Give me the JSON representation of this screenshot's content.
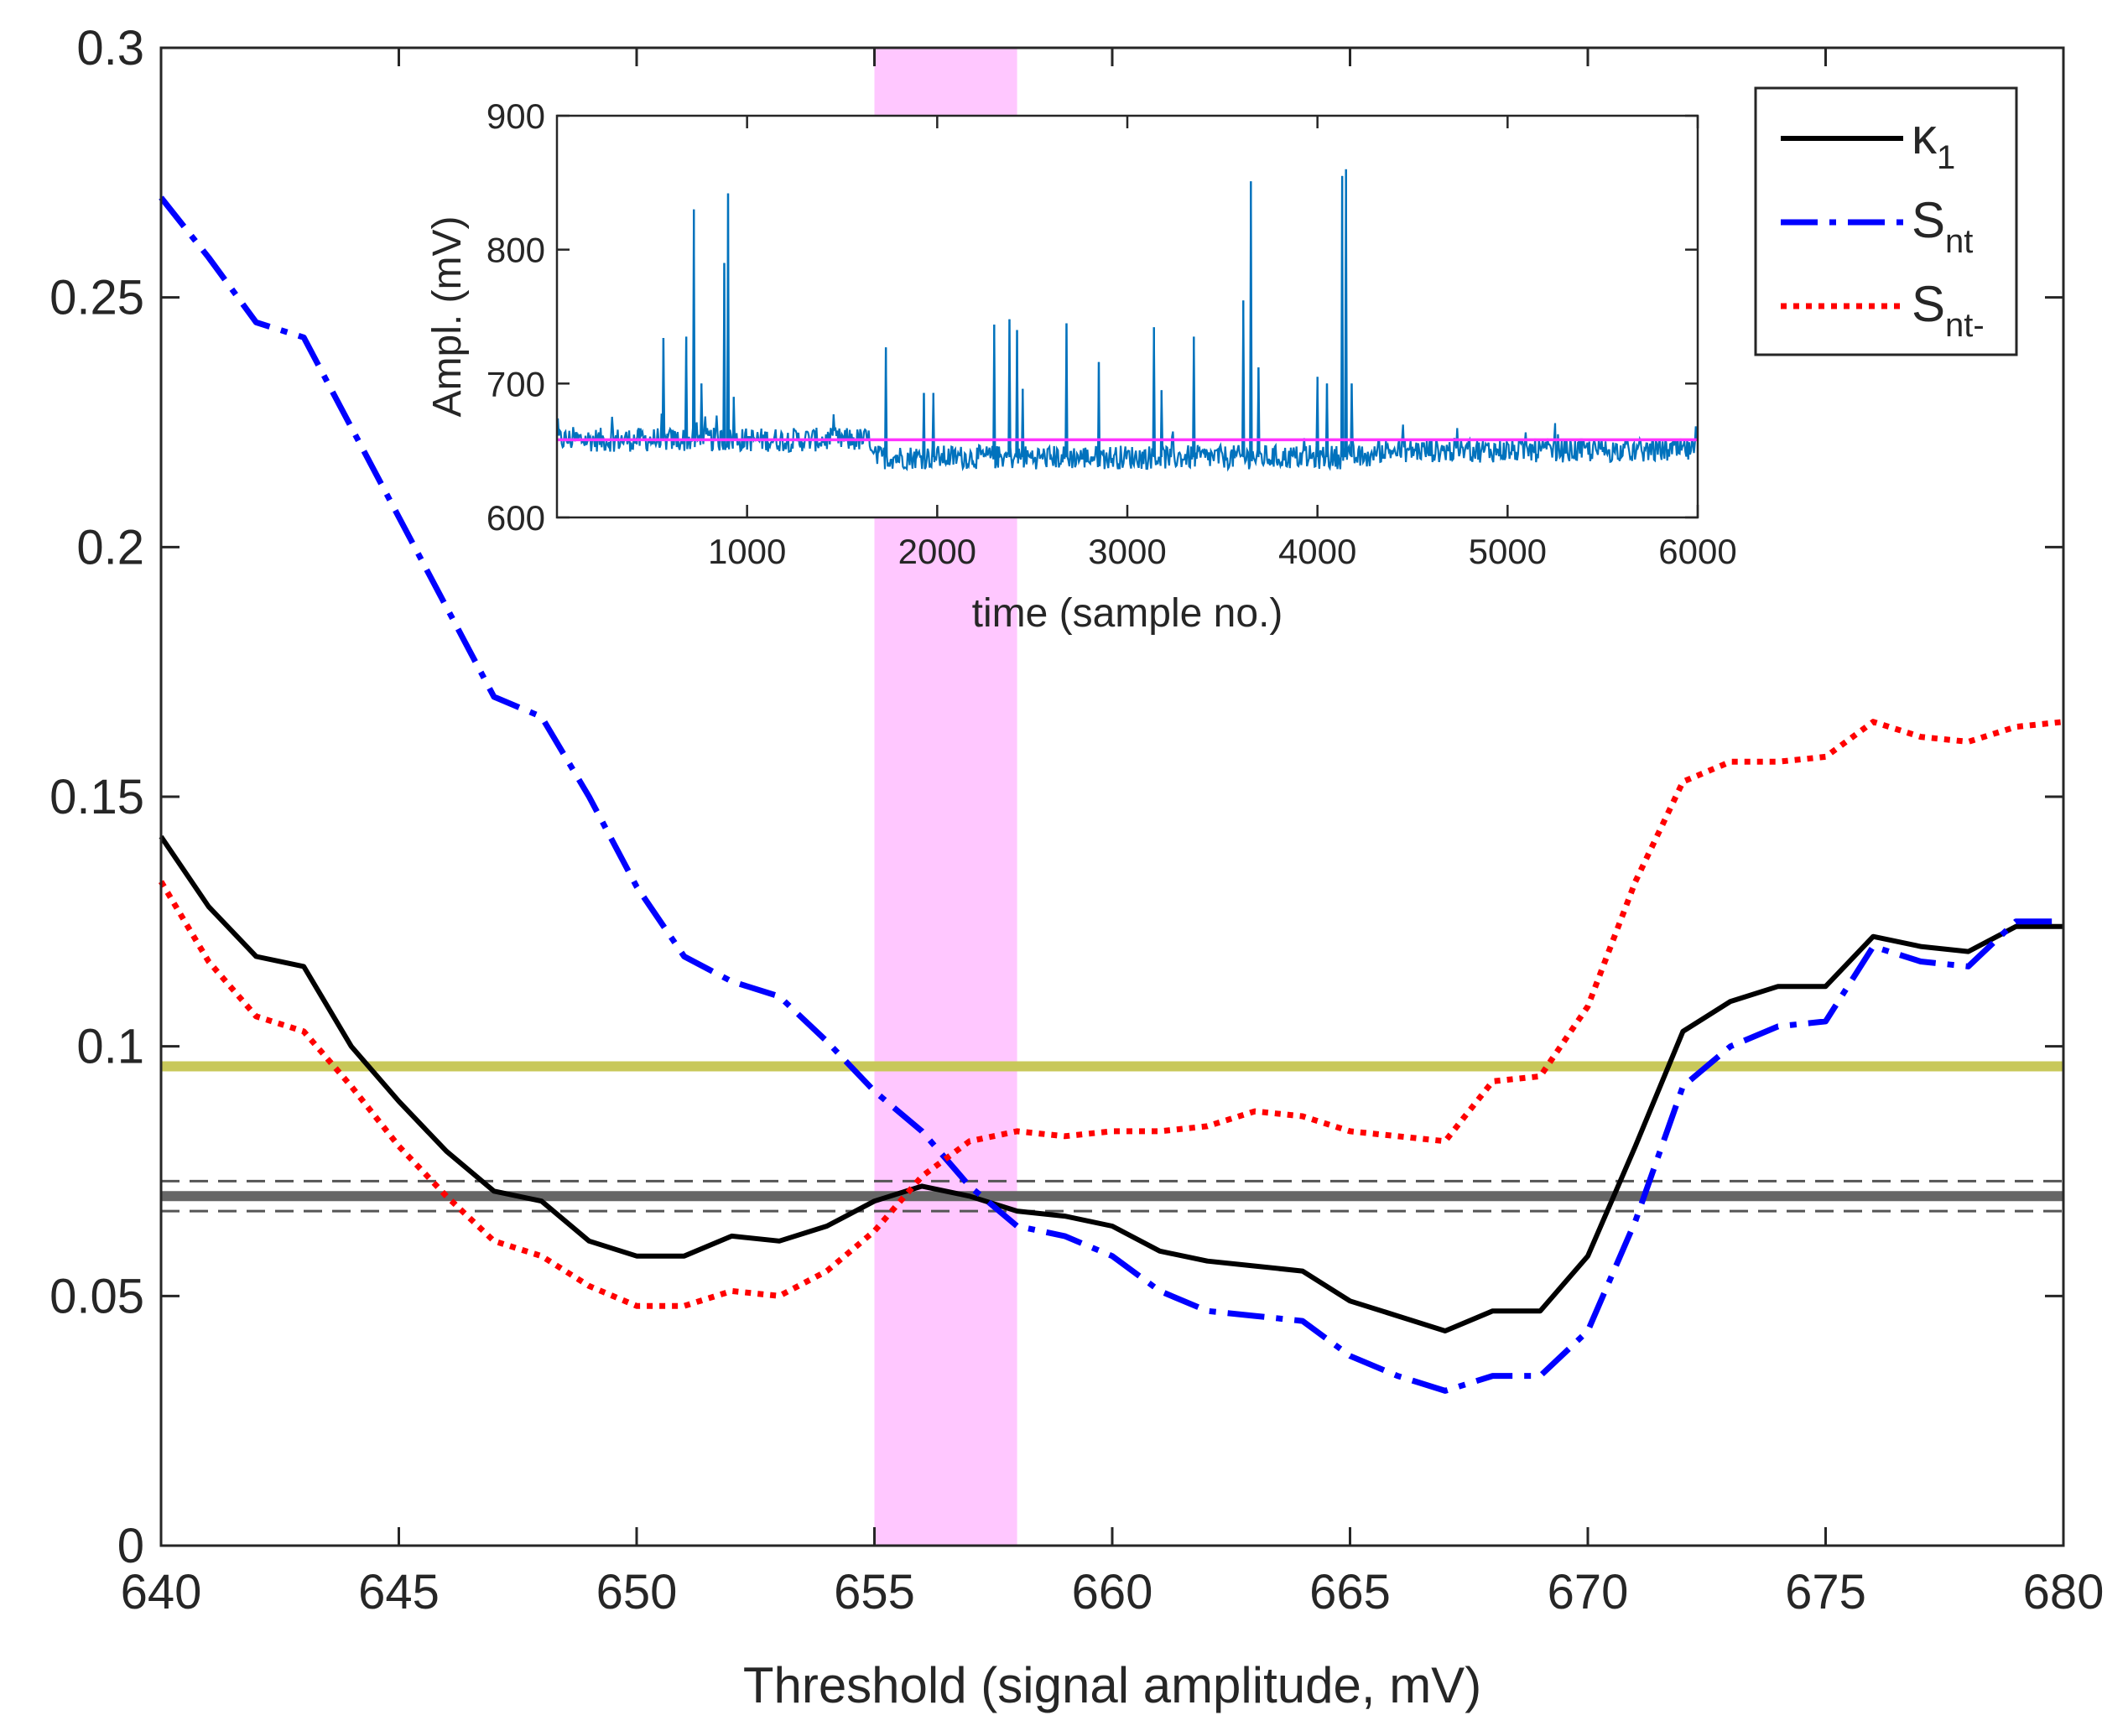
{
  "chart_data": [
    {
      "type": "line",
      "xlabel": "Threshold (signal amplitude, mV)",
      "ylabel": "",
      "xlim": [
        640,
        680
      ],
      "ylim": [
        0,
        0.3
      ],
      "xticks": [
        640,
        645,
        650,
        655,
        660,
        665,
        670,
        675,
        680
      ],
      "yticks": [
        0,
        0.05,
        0.1,
        0.15,
        0.2,
        0.25,
        0.3
      ],
      "ytick_labels": [
        "0",
        "0.05",
        "0.1",
        "0.15",
        "0.2",
        "0.25",
        "0.3"
      ],
      "grid": false,
      "legend_position": "top-right",
      "x": [
        640,
        641,
        642,
        643,
        644,
        645,
        646,
        647,
        648,
        649,
        650,
        651,
        652,
        653,
        654,
        655,
        656,
        657,
        658,
        659,
        660,
        661,
        662,
        663,
        664,
        665,
        666,
        667,
        668,
        669,
        670,
        671,
        672,
        673,
        674,
        675,
        676,
        677,
        678,
        679,
        680
      ],
      "series": [
        {
          "name": "κ",
          "name_subscript": "1",
          "style": "solid",
          "color": "#000000",
          "values": [
            0.142,
            0.128,
            0.118,
            0.116,
            0.1,
            0.089,
            0.079,
            0.071,
            0.069,
            0.061,
            0.058,
            0.058,
            0.062,
            0.061,
            0.064,
            0.069,
            0.072,
            0.07,
            0.067,
            0.066,
            0.064,
            0.059,
            0.057,
            0.056,
            0.055,
            0.049,
            0.046,
            0.043,
            0.047,
            0.047,
            0.058,
            0.08,
            0.103,
            0.109,
            0.112,
            0.112,
            0.122,
            0.12,
            0.119,
            0.124,
            0.124
          ]
        },
        {
          "name": "S",
          "name_subscript": "nt",
          "style": "dashdot",
          "color": "#0000ff",
          "values": [
            0.27,
            0.258,
            0.245,
            0.242,
            0.224,
            0.206,
            0.188,
            0.17,
            0.166,
            0.15,
            0.132,
            0.118,
            0.113,
            0.11,
            0.101,
            0.091,
            0.083,
            0.072,
            0.064,
            0.062,
            0.058,
            0.051,
            0.047,
            0.046,
            0.045,
            0.038,
            0.034,
            0.031,
            0.034,
            0.034,
            0.043,
            0.065,
            0.092,
            0.1,
            0.104,
            0.105,
            0.12,
            0.117,
            0.116,
            0.125,
            0.125
          ]
        },
        {
          "name": "S",
          "name_subscript": "nt-",
          "style": "dotted",
          "color": "#ff0000",
          "values": [
            0.133,
            0.117,
            0.106,
            0.103,
            0.092,
            0.08,
            0.07,
            0.061,
            0.058,
            0.052,
            0.048,
            0.048,
            0.051,
            0.05,
            0.055,
            0.063,
            0.074,
            0.081,
            0.083,
            0.082,
            0.083,
            0.083,
            0.084,
            0.087,
            0.086,
            0.083,
            0.082,
            0.081,
            0.093,
            0.094,
            0.108,
            0.133,
            0.153,
            0.157,
            0.157,
            0.158,
            0.165,
            0.162,
            0.161,
            0.164,
            0.165
          ]
        }
      ],
      "horizontal_lines": [
        {
          "y": 0.096,
          "color": "#c8c85a",
          "style": "solid-thick"
        },
        {
          "y": 0.07,
          "color": "#666666",
          "style": "solid-thick"
        },
        {
          "y": 0.073,
          "color": "#555555",
          "style": "dashed"
        },
        {
          "y": 0.067,
          "color": "#555555",
          "style": "dashed"
        }
      ],
      "shaded_band": {
        "x_range": [
          655,
          658
        ],
        "color": "#ff99ff",
        "opacity": 0.55
      }
    },
    {
      "type": "line",
      "inset": true,
      "xlabel": "time (sample no.)",
      "ylabel": "Ampl. (mV)",
      "xlim": [
        0,
        6000
      ],
      "ylim": [
        600,
        900
      ],
      "xticks": [
        1000,
        2000,
        3000,
        4000,
        5000,
        6000
      ],
      "yticks": [
        600,
        700,
        800,
        900
      ],
      "grid": false,
      "baseline": {
        "y": 658,
        "color": "#ff33ff"
      },
      "signal": {
        "color": "#0072bd",
        "noise_description_levels": [
          {
            "x_range": [
              0,
              1650
            ],
            "mean": 658
          },
          {
            "x_range": [
              1650,
              4300
            ],
            "mean": 645
          },
          {
            "x_range": [
              4300,
              6000
            ],
            "mean": 650
          }
        ],
        "spikes": [
          {
            "x": 560,
            "y": 734
          },
          {
            "x": 680,
            "y": 735
          },
          {
            "x": 720,
            "y": 830
          },
          {
            "x": 760,
            "y": 700
          },
          {
            "x": 880,
            "y": 790
          },
          {
            "x": 900,
            "y": 842
          },
          {
            "x": 930,
            "y": 690
          },
          {
            "x": 1730,
            "y": 727
          },
          {
            "x": 1930,
            "y": 693
          },
          {
            "x": 1980,
            "y": 693
          },
          {
            "x": 2300,
            "y": 744
          },
          {
            "x": 2380,
            "y": 748
          },
          {
            "x": 2420,
            "y": 740
          },
          {
            "x": 2450,
            "y": 696
          },
          {
            "x": 2680,
            "y": 745
          },
          {
            "x": 2850,
            "y": 716
          },
          {
            "x": 3140,
            "y": 742
          },
          {
            "x": 3180,
            "y": 695
          },
          {
            "x": 3350,
            "y": 735
          },
          {
            "x": 3610,
            "y": 762
          },
          {
            "x": 3650,
            "y": 851
          },
          {
            "x": 3690,
            "y": 712
          },
          {
            "x": 4000,
            "y": 705
          },
          {
            "x": 4050,
            "y": 700
          },
          {
            "x": 4130,
            "y": 855
          },
          {
            "x": 4150,
            "y": 860
          },
          {
            "x": 4180,
            "y": 700
          }
        ]
      }
    }
  ]
}
